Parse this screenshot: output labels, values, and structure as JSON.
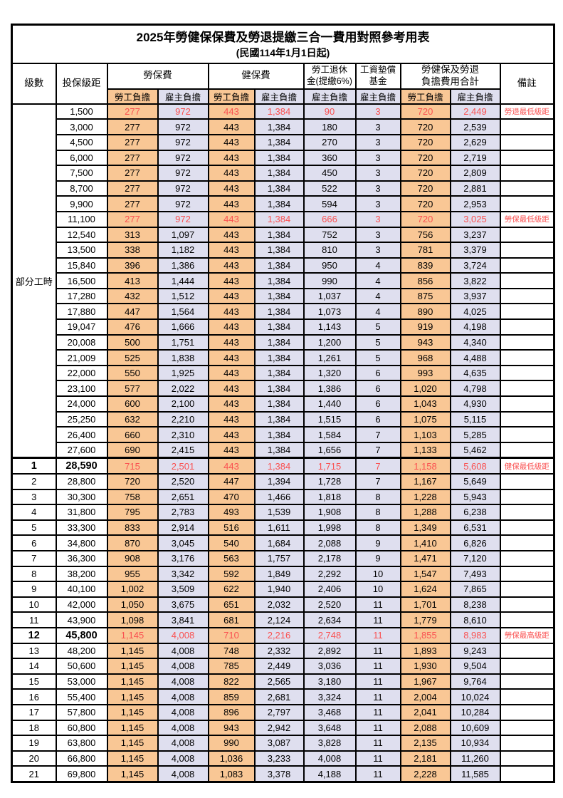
{
  "title": "2025年勞健保保費及勞退提繳三合一費用對照參考用表",
  "subtitle": "(民國114年1月1日起)",
  "colors": {
    "employee_bg": "#F9C795",
    "employer_bg": "#DFDFEF",
    "highlight_text": "#FA5151",
    "border": "#000000"
  },
  "header": {
    "level": "級數",
    "bracket": "投保級距",
    "labor_insurance": "勞保費",
    "health_insurance": "健保費",
    "pension_line1": "勞工退休",
    "pension_line2": "金(提繳6%)",
    "wage_fund_line1": "工資墊償",
    "wage_fund_line2": "基金",
    "total_line1": "勞健保及勞退",
    "total_line2": "負擔費用合計",
    "remark": "備註",
    "employee": "勞工負擔",
    "employer": "雇主負擔"
  },
  "part_time_label": "部分工時",
  "rows": [
    {
      "level": "",
      "bracket": "1,500",
      "values": [
        "277",
        "972",
        "443",
        "1,384",
        "90",
        "3",
        "720",
        "2,449"
      ],
      "remark": "勞退最低級距",
      "highlight": true,
      "bold": false,
      "section": false
    },
    {
      "level": "",
      "bracket": "3,000",
      "values": [
        "277",
        "972",
        "443",
        "1,384",
        "180",
        "3",
        "720",
        "2,539"
      ],
      "remark": "",
      "highlight": false,
      "bold": false,
      "section": false
    },
    {
      "level": "",
      "bracket": "4,500",
      "values": [
        "277",
        "972",
        "443",
        "1,384",
        "270",
        "3",
        "720",
        "2,629"
      ],
      "remark": "",
      "highlight": false,
      "bold": false,
      "section": false
    },
    {
      "level": "",
      "bracket": "6,000",
      "values": [
        "277",
        "972",
        "443",
        "1,384",
        "360",
        "3",
        "720",
        "2,719"
      ],
      "remark": "",
      "highlight": false,
      "bold": false,
      "section": false
    },
    {
      "level": "",
      "bracket": "7,500",
      "values": [
        "277",
        "972",
        "443",
        "1,384",
        "450",
        "3",
        "720",
        "2,809"
      ],
      "remark": "",
      "highlight": false,
      "bold": false,
      "section": false
    },
    {
      "level": "",
      "bracket": "8,700",
      "values": [
        "277",
        "972",
        "443",
        "1,384",
        "522",
        "3",
        "720",
        "2,881"
      ],
      "remark": "",
      "highlight": false,
      "bold": false,
      "section": false
    },
    {
      "level": "",
      "bracket": "9,900",
      "values": [
        "277",
        "972",
        "443",
        "1,384",
        "594",
        "3",
        "720",
        "2,953"
      ],
      "remark": "",
      "highlight": false,
      "bold": false,
      "section": false
    },
    {
      "level": "",
      "bracket": "11,100",
      "values": [
        "277",
        "972",
        "443",
        "1,384",
        "666",
        "3",
        "720",
        "3,025"
      ],
      "remark": "勞保最低級距",
      "highlight": true,
      "bold": false,
      "section": false
    },
    {
      "level": "",
      "bracket": "12,540",
      "values": [
        "313",
        "1,097",
        "443",
        "1,384",
        "752",
        "3",
        "756",
        "3,237"
      ],
      "remark": "",
      "highlight": false,
      "bold": false,
      "section": false
    },
    {
      "level": "",
      "bracket": "13,500",
      "values": [
        "338",
        "1,182",
        "443",
        "1,384",
        "810",
        "3",
        "781",
        "3,379"
      ],
      "remark": "",
      "highlight": false,
      "bold": false,
      "section": false
    },
    {
      "level": "",
      "bracket": "15,840",
      "values": [
        "396",
        "1,386",
        "443",
        "1,384",
        "950",
        "4",
        "839",
        "3,724"
      ],
      "remark": "",
      "highlight": false,
      "bold": false,
      "section": false
    },
    {
      "level": "",
      "bracket": "16,500",
      "values": [
        "413",
        "1,444",
        "443",
        "1,384",
        "990",
        "4",
        "856",
        "3,822"
      ],
      "remark": "",
      "highlight": false,
      "bold": false,
      "section": false
    },
    {
      "level": "",
      "bracket": "17,280",
      "values": [
        "432",
        "1,512",
        "443",
        "1,384",
        "1,037",
        "4",
        "875",
        "3,937"
      ],
      "remark": "",
      "highlight": false,
      "bold": false,
      "section": false
    },
    {
      "level": "",
      "bracket": "17,880",
      "values": [
        "447",
        "1,564",
        "443",
        "1,384",
        "1,073",
        "4",
        "890",
        "4,025"
      ],
      "remark": "",
      "highlight": false,
      "bold": false,
      "section": false
    },
    {
      "level": "",
      "bracket": "19,047",
      "values": [
        "476",
        "1,666",
        "443",
        "1,384",
        "1,143",
        "5",
        "919",
        "4,198"
      ],
      "remark": "",
      "highlight": false,
      "bold": false,
      "section": false
    },
    {
      "level": "",
      "bracket": "20,008",
      "values": [
        "500",
        "1,751",
        "443",
        "1,384",
        "1,200",
        "5",
        "943",
        "4,340"
      ],
      "remark": "",
      "highlight": false,
      "bold": false,
      "section": false
    },
    {
      "level": "",
      "bracket": "21,009",
      "values": [
        "525",
        "1,838",
        "443",
        "1,384",
        "1,261",
        "5",
        "968",
        "4,488"
      ],
      "remark": "",
      "highlight": false,
      "bold": false,
      "section": false
    },
    {
      "level": "",
      "bracket": "22,000",
      "values": [
        "550",
        "1,925",
        "443",
        "1,384",
        "1,320",
        "6",
        "993",
        "4,635"
      ],
      "remark": "",
      "highlight": false,
      "bold": false,
      "section": false
    },
    {
      "level": "",
      "bracket": "23,100",
      "values": [
        "577",
        "2,022",
        "443",
        "1,384",
        "1,386",
        "6",
        "1,020",
        "4,798"
      ],
      "remark": "",
      "highlight": false,
      "bold": false,
      "section": false
    },
    {
      "level": "",
      "bracket": "24,000",
      "values": [
        "600",
        "2,100",
        "443",
        "1,384",
        "1,440",
        "6",
        "1,043",
        "4,930"
      ],
      "remark": "",
      "highlight": false,
      "bold": false,
      "section": false
    },
    {
      "level": "",
      "bracket": "25,250",
      "values": [
        "632",
        "2,210",
        "443",
        "1,384",
        "1,515",
        "6",
        "1,075",
        "5,115"
      ],
      "remark": "",
      "highlight": false,
      "bold": false,
      "section": false
    },
    {
      "level": "",
      "bracket": "26,400",
      "values": [
        "660",
        "2,310",
        "443",
        "1,384",
        "1,584",
        "7",
        "1,103",
        "5,285"
      ],
      "remark": "",
      "highlight": false,
      "bold": false,
      "section": false
    },
    {
      "level": "",
      "bracket": "27,600",
      "values": [
        "690",
        "2,415",
        "443",
        "1,384",
        "1,656",
        "7",
        "1,133",
        "5,462"
      ],
      "remark": "",
      "highlight": false,
      "bold": false,
      "section": false
    },
    {
      "level": "1",
      "bracket": "28,590",
      "values": [
        "715",
        "2,501",
        "443",
        "1,384",
        "1,715",
        "7",
        "1,158",
        "5,608"
      ],
      "remark": "健保最低級距",
      "highlight": true,
      "bold": true,
      "section": true
    },
    {
      "level": "2",
      "bracket": "28,800",
      "values": [
        "720",
        "2,520",
        "447",
        "1,394",
        "1,728",
        "7",
        "1,167",
        "5,649"
      ],
      "remark": "",
      "highlight": false,
      "bold": false,
      "section": false
    },
    {
      "level": "3",
      "bracket": "30,300",
      "values": [
        "758",
        "2,651",
        "470",
        "1,466",
        "1,818",
        "8",
        "1,228",
        "5,943"
      ],
      "remark": "",
      "highlight": false,
      "bold": false,
      "section": false
    },
    {
      "level": "4",
      "bracket": "31,800",
      "values": [
        "795",
        "2,783",
        "493",
        "1,539",
        "1,908",
        "8",
        "1,288",
        "6,238"
      ],
      "remark": "",
      "highlight": false,
      "bold": false,
      "section": false
    },
    {
      "level": "5",
      "bracket": "33,300",
      "values": [
        "833",
        "2,914",
        "516",
        "1,611",
        "1,998",
        "8",
        "1,349",
        "6,531"
      ],
      "remark": "",
      "highlight": false,
      "bold": false,
      "section": false
    },
    {
      "level": "6",
      "bracket": "34,800",
      "values": [
        "870",
        "3,045",
        "540",
        "1,684",
        "2,088",
        "9",
        "1,410",
        "6,826"
      ],
      "remark": "",
      "highlight": false,
      "bold": false,
      "section": false
    },
    {
      "level": "7",
      "bracket": "36,300",
      "values": [
        "908",
        "3,176",
        "563",
        "1,757",
        "2,178",
        "9",
        "1,471",
        "7,120"
      ],
      "remark": "",
      "highlight": false,
      "bold": false,
      "section": false
    },
    {
      "level": "8",
      "bracket": "38,200",
      "values": [
        "955",
        "3,342",
        "592",
        "1,849",
        "2,292",
        "10",
        "1,547",
        "7,493"
      ],
      "remark": "",
      "highlight": false,
      "bold": false,
      "section": false
    },
    {
      "level": "9",
      "bracket": "40,100",
      "values": [
        "1,002",
        "3,509",
        "622",
        "1,940",
        "2,406",
        "10",
        "1,624",
        "7,865"
      ],
      "remark": "",
      "highlight": false,
      "bold": false,
      "section": false
    },
    {
      "level": "10",
      "bracket": "42,000",
      "values": [
        "1,050",
        "3,675",
        "651",
        "2,032",
        "2,520",
        "11",
        "1,701",
        "8,238"
      ],
      "remark": "",
      "highlight": false,
      "bold": false,
      "section": false
    },
    {
      "level": "11",
      "bracket": "43,900",
      "values": [
        "1,098",
        "3,841",
        "681",
        "2,124",
        "2,634",
        "11",
        "1,779",
        "8,610"
      ],
      "remark": "",
      "highlight": false,
      "bold": false,
      "section": false
    },
    {
      "level": "12",
      "bracket": "45,800",
      "values": [
        "1,145",
        "4,008",
        "710",
        "2,216",
        "2,748",
        "11",
        "1,855",
        "8,983"
      ],
      "remark": "勞保最高級距",
      "highlight": true,
      "bold": true,
      "section": false
    },
    {
      "level": "13",
      "bracket": "48,200",
      "values": [
        "1,145",
        "4,008",
        "748",
        "2,332",
        "2,892",
        "11",
        "1,893",
        "9,243"
      ],
      "remark": "",
      "highlight": false,
      "bold": false,
      "section": false
    },
    {
      "level": "14",
      "bracket": "50,600",
      "values": [
        "1,145",
        "4,008",
        "785",
        "2,449",
        "3,036",
        "11",
        "1,930",
        "9,504"
      ],
      "remark": "",
      "highlight": false,
      "bold": false,
      "section": false
    },
    {
      "level": "15",
      "bracket": "53,000",
      "values": [
        "1,145",
        "4,008",
        "822",
        "2,565",
        "3,180",
        "11",
        "1,967",
        "9,764"
      ],
      "remark": "",
      "highlight": false,
      "bold": false,
      "section": false
    },
    {
      "level": "16",
      "bracket": "55,400",
      "values": [
        "1,145",
        "4,008",
        "859",
        "2,681",
        "3,324",
        "11",
        "2,004",
        "10,024"
      ],
      "remark": "",
      "highlight": false,
      "bold": false,
      "section": false
    },
    {
      "level": "17",
      "bracket": "57,800",
      "values": [
        "1,145",
        "4,008",
        "896",
        "2,797",
        "3,468",
        "11",
        "2,041",
        "10,284"
      ],
      "remark": "",
      "highlight": false,
      "bold": false,
      "section": false
    },
    {
      "level": "18",
      "bracket": "60,800",
      "values": [
        "1,145",
        "4,008",
        "943",
        "2,942",
        "3,648",
        "11",
        "2,088",
        "10,609"
      ],
      "remark": "",
      "highlight": false,
      "bold": false,
      "section": false
    },
    {
      "level": "19",
      "bracket": "63,800",
      "values": [
        "1,145",
        "4,008",
        "990",
        "3,087",
        "3,828",
        "11",
        "2,135",
        "10,934"
      ],
      "remark": "",
      "highlight": false,
      "bold": false,
      "section": false
    },
    {
      "level": "20",
      "bracket": "66,800",
      "values": [
        "1,145",
        "4,008",
        "1,036",
        "3,233",
        "4,008",
        "11",
        "2,181",
        "11,260"
      ],
      "remark": "",
      "highlight": false,
      "bold": false,
      "section": false
    },
    {
      "level": "21",
      "bracket": "69,800",
      "values": [
        "1,145",
        "4,008",
        "1,083",
        "3,378",
        "4,188",
        "11",
        "2,228",
        "11,585"
      ],
      "remark": "",
      "highlight": false,
      "bold": false,
      "section": false
    }
  ]
}
